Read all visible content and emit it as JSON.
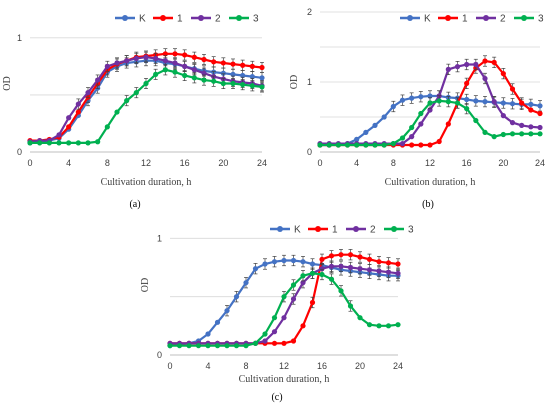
{
  "colors": {
    "K": "#4472C4",
    "1": "#FF0000",
    "2": "#7030A0",
    "3": "#00B050"
  },
  "chart_data": [
    {
      "type": "line",
      "panel_label": "(a)",
      "xlabel": "Cultivation duration, h",
      "ylabel": "OD",
      "xlim": [
        0,
        24
      ],
      "ylim": [
        0,
        1.2
      ],
      "xticks": [
        0,
        4,
        8,
        12,
        16,
        20,
        24
      ],
      "yticks": [
        0,
        1
      ],
      "grid": true,
      "legend": "top-right",
      "x": [
        0,
        1,
        2,
        3,
        4,
        5,
        6,
        7,
        8,
        9,
        10,
        11,
        12,
        13,
        14,
        15,
        16,
        17,
        18,
        19,
        20,
        21,
        22,
        23,
        24
      ],
      "series": [
        {
          "name": "K",
          "color_key": "K",
          "values": [
            0.08,
            0.09,
            0.1,
            0.12,
            0.2,
            0.32,
            0.45,
            0.56,
            0.7,
            0.75,
            0.78,
            0.79,
            0.8,
            0.8,
            0.78,
            0.77,
            0.75,
            0.73,
            0.71,
            0.7,
            0.69,
            0.68,
            0.67,
            0.66,
            0.65
          ]
        },
        {
          "name": "1",
          "color_key": "1",
          "values": [
            0.1,
            0.1,
            0.11,
            0.13,
            0.22,
            0.35,
            0.48,
            0.6,
            0.72,
            0.77,
            0.8,
            0.83,
            0.84,
            0.85,
            0.86,
            0.86,
            0.85,
            0.83,
            0.81,
            0.79,
            0.78,
            0.77,
            0.76,
            0.75,
            0.74
          ]
        },
        {
          "name": "2",
          "color_key": "2",
          "values": [
            0.09,
            0.1,
            0.1,
            0.15,
            0.3,
            0.42,
            0.52,
            0.63,
            0.75,
            0.78,
            0.8,
            0.82,
            0.83,
            0.82,
            0.8,
            0.78,
            0.75,
            0.72,
            0.69,
            0.66,
            0.64,
            0.62,
            0.61,
            0.6,
            0.58
          ]
        },
        {
          "name": "3",
          "color_key": "3",
          "values": [
            0.08,
            0.08,
            0.08,
            0.08,
            0.08,
            0.08,
            0.08,
            0.09,
            0.22,
            0.35,
            0.45,
            0.52,
            0.6,
            0.68,
            0.72,
            0.7,
            0.67,
            0.65,
            0.63,
            0.62,
            0.6,
            0.6,
            0.59,
            0.58,
            0.57
          ]
        }
      ]
    },
    {
      "type": "line",
      "panel_label": "(b)",
      "xlabel": "Cultivation duration, h",
      "ylabel": "OD",
      "xlim": [
        0,
        24
      ],
      "ylim": [
        0,
        2
      ],
      "xticks": [
        0,
        4,
        8,
        12,
        16,
        20,
        24
      ],
      "yticks": [
        0,
        1,
        2
      ],
      "grid": true,
      "legend": "top-right",
      "x": [
        0,
        1,
        2,
        3,
        4,
        5,
        6,
        7,
        8,
        9,
        10,
        11,
        12,
        13,
        14,
        15,
        16,
        17,
        18,
        19,
        20,
        21,
        22,
        23,
        24
      ],
      "series": [
        {
          "name": "K",
          "color_key": "K",
          "values": [
            0.1,
            0.1,
            0.11,
            0.12,
            0.18,
            0.28,
            0.38,
            0.5,
            0.65,
            0.74,
            0.77,
            0.79,
            0.8,
            0.8,
            0.78,
            0.77,
            0.75,
            0.73,
            0.72,
            0.71,
            0.7,
            0.69,
            0.68,
            0.68,
            0.66
          ]
        },
        {
          "name": "1",
          "color_key": "1",
          "values": [
            0.1,
            0.1,
            0.1,
            0.1,
            0.1,
            0.1,
            0.1,
            0.1,
            0.1,
            0.1,
            0.1,
            0.1,
            0.1,
            0.15,
            0.4,
            0.7,
            0.98,
            1.2,
            1.3,
            1.28,
            1.12,
            0.9,
            0.7,
            0.6,
            0.55
          ]
        },
        {
          "name": "2",
          "color_key": "2",
          "values": [
            0.12,
            0.12,
            0.12,
            0.12,
            0.12,
            0.12,
            0.12,
            0.12,
            0.12,
            0.12,
            0.22,
            0.4,
            0.6,
            0.8,
            1.18,
            1.22,
            1.25,
            1.25,
            1.05,
            0.72,
            0.52,
            0.42,
            0.38,
            0.36,
            0.35
          ]
        },
        {
          "name": "3",
          "color_key": "3",
          "values": [
            0.1,
            0.1,
            0.1,
            0.1,
            0.1,
            0.1,
            0.1,
            0.1,
            0.12,
            0.2,
            0.35,
            0.55,
            0.7,
            0.73,
            0.72,
            0.7,
            0.62,
            0.45,
            0.28,
            0.22,
            0.25,
            0.26,
            0.26,
            0.26,
            0.26
          ]
        }
      ]
    },
    {
      "type": "line",
      "panel_label": "(c)",
      "xlabel": "Cultivation duration, h",
      "ylabel": "OD",
      "xlim": [
        0,
        24
      ],
      "ylim": [
        0,
        1.2
      ],
      "xticks": [
        0,
        4,
        8,
        12,
        16,
        20,
        24
      ],
      "yticks": [
        0,
        1
      ],
      "grid": true,
      "legend": "top-center",
      "x": [
        0,
        1,
        2,
        3,
        4,
        5,
        6,
        7,
        8,
        9,
        10,
        11,
        12,
        13,
        14,
        15,
        16,
        17,
        18,
        19,
        20,
        21,
        22,
        23,
        24
      ],
      "series": [
        {
          "name": "K",
          "color_key": "K",
          "values": [
            0.08,
            0.09,
            0.1,
            0.12,
            0.18,
            0.28,
            0.38,
            0.5,
            0.62,
            0.74,
            0.78,
            0.8,
            0.81,
            0.81,
            0.8,
            0.78,
            0.77,
            0.75,
            0.73,
            0.72,
            0.71,
            0.7,
            0.69,
            0.68,
            0.68
          ]
        },
        {
          "name": "1",
          "color_key": "1",
          "values": [
            0.1,
            0.1,
            0.1,
            0.1,
            0.1,
            0.1,
            0.1,
            0.1,
            0.1,
            0.1,
            0.1,
            0.1,
            0.1,
            0.12,
            0.25,
            0.45,
            0.82,
            0.85,
            0.86,
            0.86,
            0.84,
            0.82,
            0.8,
            0.79,
            0.78
          ]
        },
        {
          "name": "2",
          "color_key": "2",
          "values": [
            0.1,
            0.1,
            0.1,
            0.1,
            0.1,
            0.1,
            0.1,
            0.1,
            0.1,
            0.1,
            0.12,
            0.2,
            0.32,
            0.48,
            0.62,
            0.7,
            0.74,
            0.76,
            0.76,
            0.75,
            0.74,
            0.73,
            0.72,
            0.71,
            0.7
          ]
        },
        {
          "name": "3",
          "color_key": "3",
          "values": [
            0.08,
            0.08,
            0.08,
            0.08,
            0.08,
            0.08,
            0.08,
            0.08,
            0.08,
            0.1,
            0.18,
            0.32,
            0.5,
            0.6,
            0.68,
            0.7,
            0.69,
            0.65,
            0.55,
            0.42,
            0.32,
            0.26,
            0.25,
            0.25,
            0.26
          ]
        }
      ]
    }
  ]
}
